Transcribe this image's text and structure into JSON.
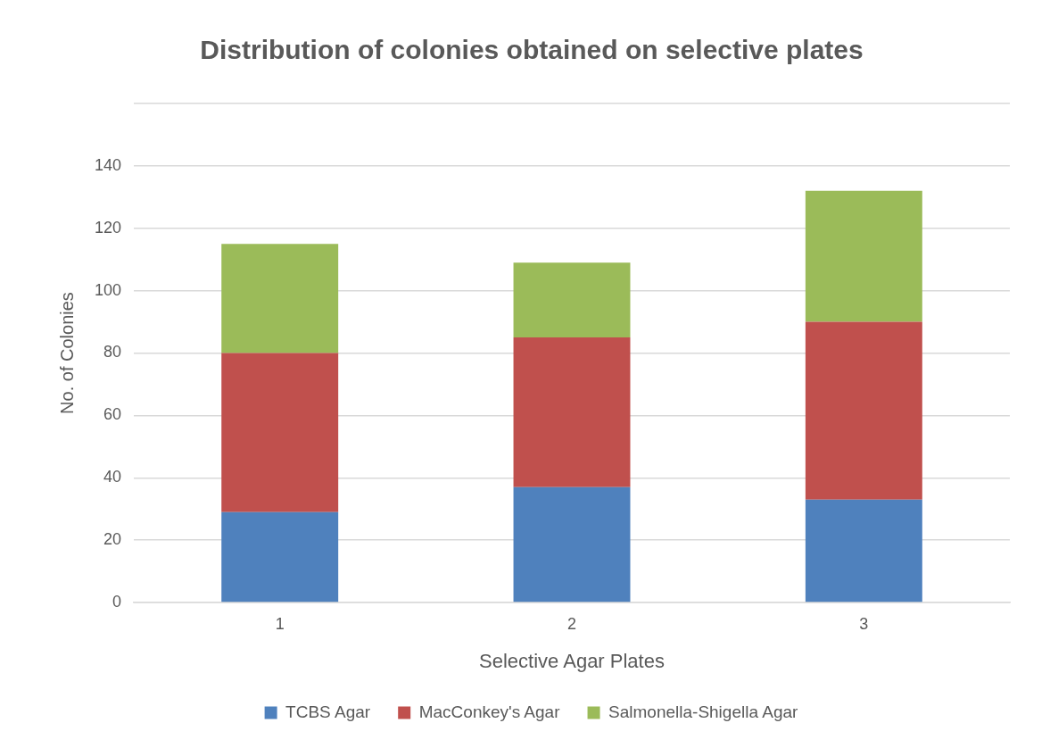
{
  "chart_data": {
    "type": "bar",
    "title": "Distribution of colonies obtained on selective plates",
    "xlabel": "Selective Agar Plates",
    "ylabel": "No. of Colonies",
    "categories": [
      "1",
      "2",
      "3"
    ],
    "stacked": true,
    "series": [
      {
        "name": "TCBS Agar",
        "color": "#4f81bd",
        "values": [
          29,
          37,
          33
        ]
      },
      {
        "name": "MacConkey's Agar",
        "color": "#c0504d",
        "values": [
          51,
          48,
          57
        ]
      },
      {
        "name": "Salmonella-Shigella Agar",
        "color": "#9bbb59",
        "values": [
          35,
          24,
          42
        ]
      }
    ],
    "ylim": [
      0,
      160
    ],
    "yticks": [
      0,
      20,
      40,
      60,
      80,
      100,
      120,
      140,
      {
        "value": 160,
        "label": null
      }
    ],
    "grid": "y",
    "legend": "bottom"
  }
}
